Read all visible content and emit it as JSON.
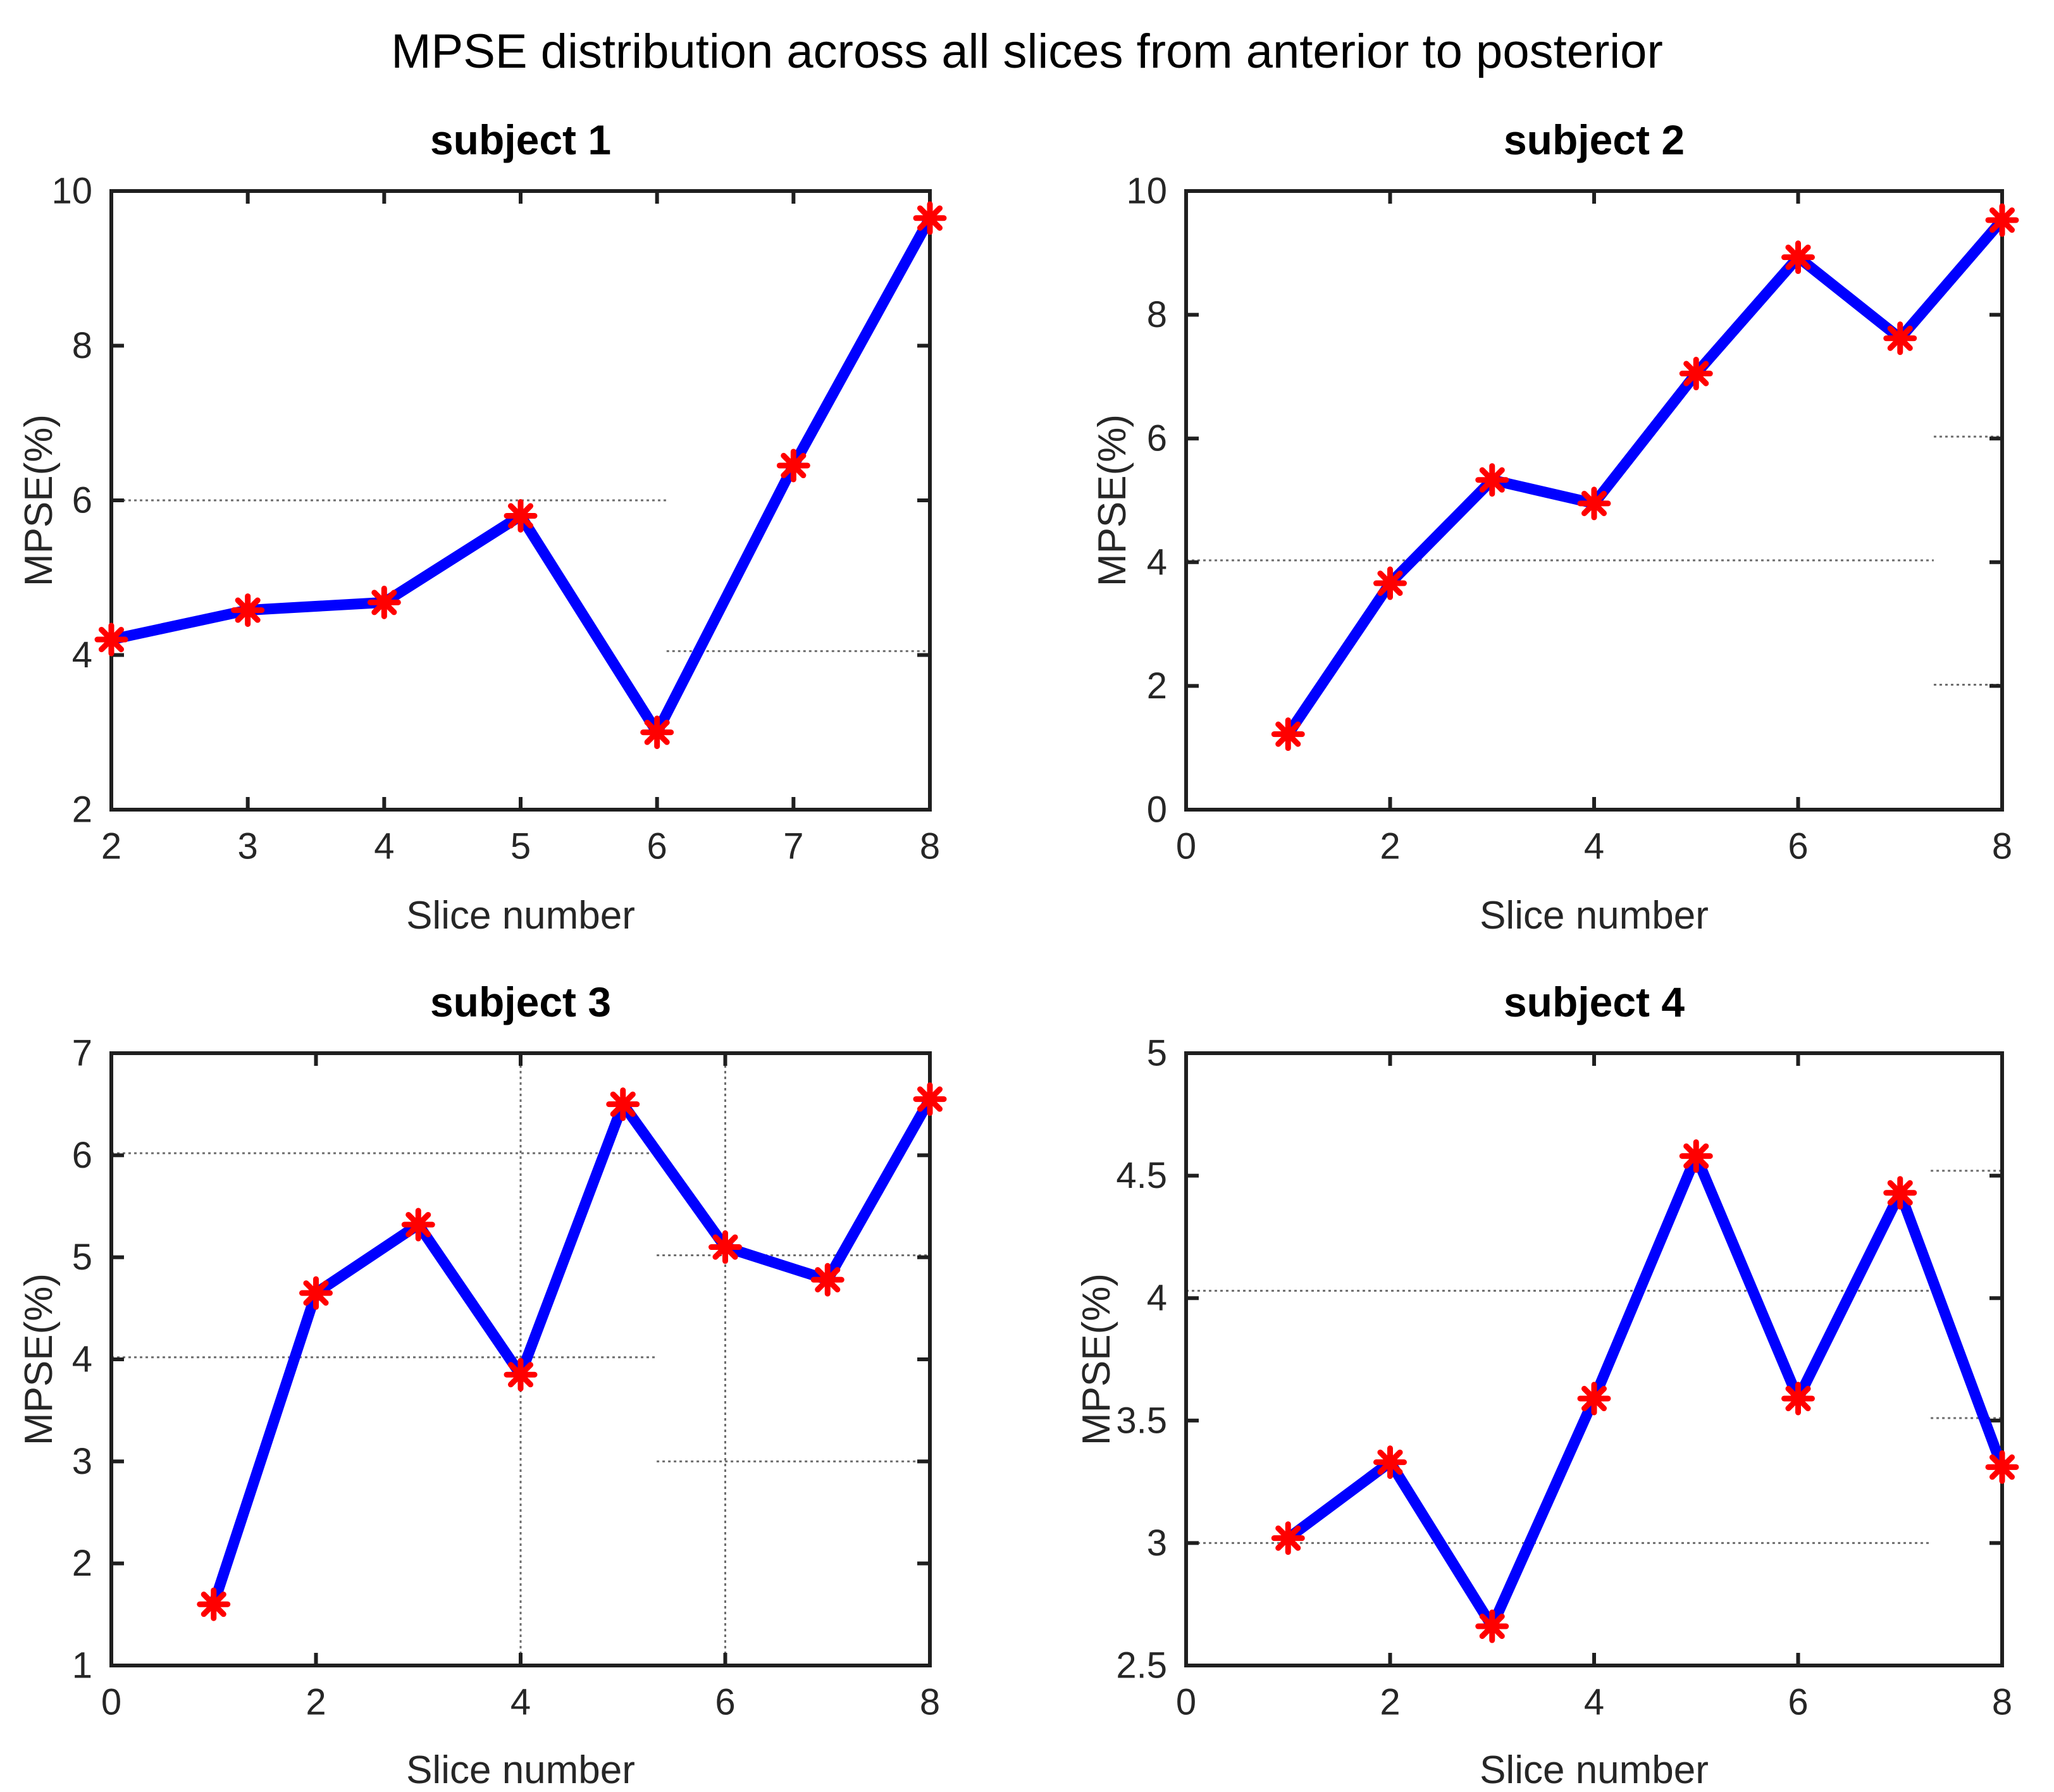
{
  "figure": {
    "main_title": "MPSE distribution across all slices from anterior to posterior",
    "colors": {
      "line": "#0000ff",
      "marker": "#ff0000",
      "grid": "#6e6e6e",
      "axis": "#1f1f1f",
      "tick_label": "#262626"
    }
  },
  "chart_data": [
    {
      "type": "line",
      "title": "subject 1",
      "xlabel": "Slice number",
      "ylabel": "MPSE(%)",
      "marker": "asterisk",
      "legend_position": "none",
      "grid": "partial-segments",
      "x": [
        2,
        3,
        4,
        5,
        6,
        7,
        8
      ],
      "y": [
        4.2,
        4.58,
        4.68,
        5.8,
        3.0,
        6.45,
        9.65
      ],
      "xlim": [
        2,
        8
      ],
      "ylim": [
        2,
        10
      ],
      "xticks": [
        2,
        3,
        4,
        5,
        6,
        7,
        8
      ],
      "yticks": [
        2,
        4,
        6,
        8,
        10
      ],
      "grid_h_segments": [
        {
          "y": 6.0,
          "x1": 2.0,
          "x2": 6.07
        },
        {
          "y": 4.05,
          "x1": 6.07,
          "x2": 8.0
        }
      ],
      "grid_v_segments": []
    },
    {
      "type": "line",
      "title": "subject 2",
      "xlabel": "Slice number",
      "ylabel": "MPSE(%)",
      "marker": "asterisk",
      "legend_position": "none",
      "grid": "partial-segments",
      "x": [
        1,
        2,
        3,
        4,
        5,
        6,
        7,
        8
      ],
      "y": [
        1.22,
        3.66,
        5.33,
        4.95,
        7.05,
        8.93,
        7.62,
        9.53
      ],
      "xlim": [
        0,
        8
      ],
      "ylim": [
        0,
        10
      ],
      "xticks": [
        0,
        2,
        4,
        6,
        8
      ],
      "yticks": [
        0,
        2,
        4,
        6,
        8,
        10
      ],
      "grid_h_segments": [
        {
          "y": 4.03,
          "x1": 0.0,
          "x2": 7.33
        },
        {
          "y": 6.03,
          "x1": 7.33,
          "x2": 8.0
        },
        {
          "y": 2.02,
          "x1": 7.33,
          "x2": 8.0
        }
      ],
      "grid_v_segments": []
    },
    {
      "type": "line",
      "title": "subject 3",
      "xlabel": "Slice number",
      "ylabel": "MPSE(%)",
      "marker": "asterisk",
      "legend_position": "none",
      "grid": "partial-segments",
      "x": [
        1,
        2,
        3,
        4,
        5,
        6,
        7,
        8
      ],
      "y": [
        1.6,
        4.65,
        5.32,
        3.85,
        6.5,
        5.1,
        4.78,
        6.55
      ],
      "xlim": [
        0,
        8
      ],
      "ylim": [
        1,
        7
      ],
      "xticks": [
        0,
        2,
        4,
        6,
        8
      ],
      "yticks": [
        1,
        2,
        3,
        4,
        5,
        6,
        7
      ],
      "grid_h_segments": [
        {
          "y": 6.02,
          "x1": 0.0,
          "x2": 5.33
        },
        {
          "y": 4.02,
          "x1": 0.0,
          "x2": 5.33
        },
        {
          "y": 5.02,
          "x1": 5.33,
          "x2": 8.0
        },
        {
          "y": 3.0,
          "x1": 5.33,
          "x2": 8.0
        }
      ],
      "grid_v_segments": [
        {
          "x": 4,
          "y1": 1,
          "y2": 7
        },
        {
          "x": 6,
          "y1": 1,
          "y2": 7
        }
      ]
    },
    {
      "type": "line",
      "title": "subject 4",
      "xlabel": "Slice number",
      "ylabel": "MPSE(%)",
      "marker": "asterisk",
      "legend_position": "none",
      "grid": "partial-segments",
      "x": [
        1,
        2,
        3,
        4,
        5,
        6,
        7,
        8
      ],
      "y": [
        3.02,
        3.33,
        2.66,
        3.59,
        4.58,
        3.59,
        4.43,
        3.31
      ],
      "xlim": [
        0,
        8
      ],
      "ylim": [
        2.5,
        5
      ],
      "xticks": [
        0,
        2,
        4,
        6,
        8
      ],
      "yticks": [
        2.5,
        3,
        3.5,
        4,
        4.5,
        5
      ],
      "grid_h_segments": [
        {
          "y": 4.03,
          "x1": 0.0,
          "x2": 7.3
        },
        {
          "y": 3.0,
          "x1": 0.0,
          "x2": 7.3
        },
        {
          "y": 4.52,
          "x1": 7.3,
          "x2": 8.0
        },
        {
          "y": 3.51,
          "x1": 7.3,
          "x2": 8.0
        }
      ],
      "grid_v_segments": []
    }
  ]
}
